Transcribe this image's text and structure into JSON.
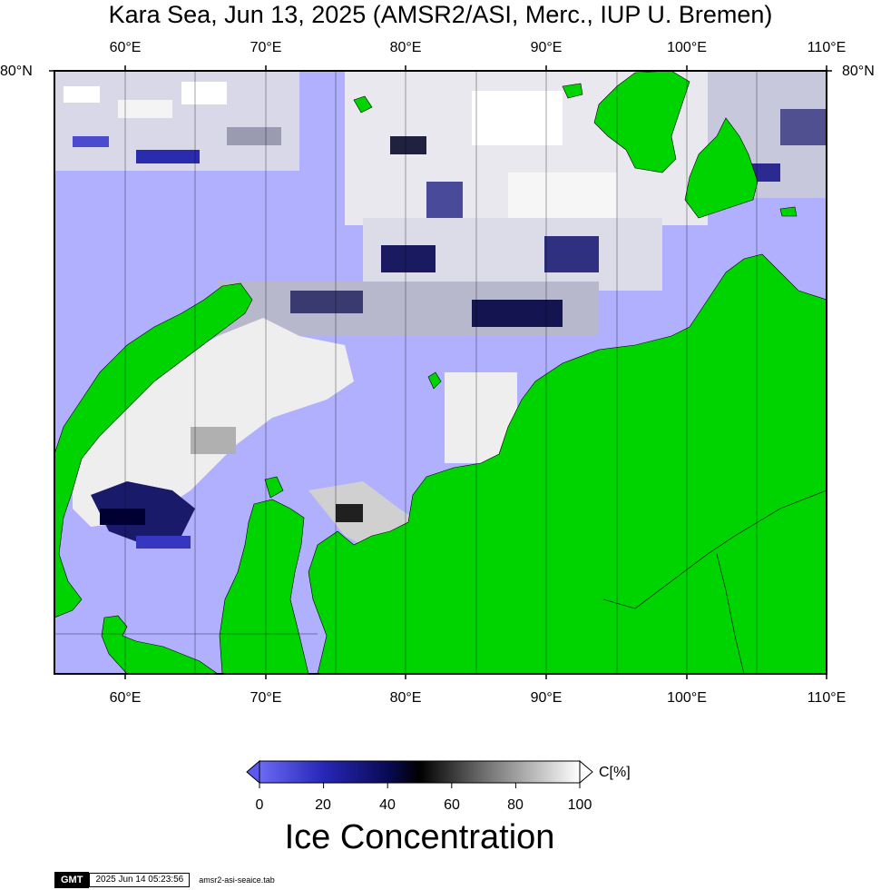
{
  "title": "Kara Sea, Jun 13, 2025 (AMSR2/ASI, Merc., IUP U. Bremen)",
  "axes": {
    "top_lon_labels": [
      "60°E",
      "70°E",
      "80°E",
      "90°E",
      "100°E",
      "110°E"
    ],
    "bottom_lon_labels": [
      "60°E",
      "70°E",
      "80°E",
      "90°E",
      "100°E",
      "110°E"
    ],
    "left_lat_label": "80°N",
    "right_lat_label": "80°N"
  },
  "colorbar": {
    "ticks": [
      "0",
      "20",
      "40",
      "60",
      "80",
      "100"
    ],
    "unit": "C[%]",
    "title": "Ice Concentration",
    "colors": [
      "#5b5bf0",
      "#0b0b6e",
      "#000000",
      "#7f7f7f",
      "#ffffff"
    ]
  },
  "footer": {
    "logo": "GMT",
    "timestamp": "2025 Jun 14 05:23:56",
    "filename": "amsr2-asi-seaice.tab"
  },
  "colors": {
    "open_water": "#b0b0ff",
    "land": "#00d400",
    "ice_high": "#f4f4f4",
    "frame": "#000000"
  }
}
